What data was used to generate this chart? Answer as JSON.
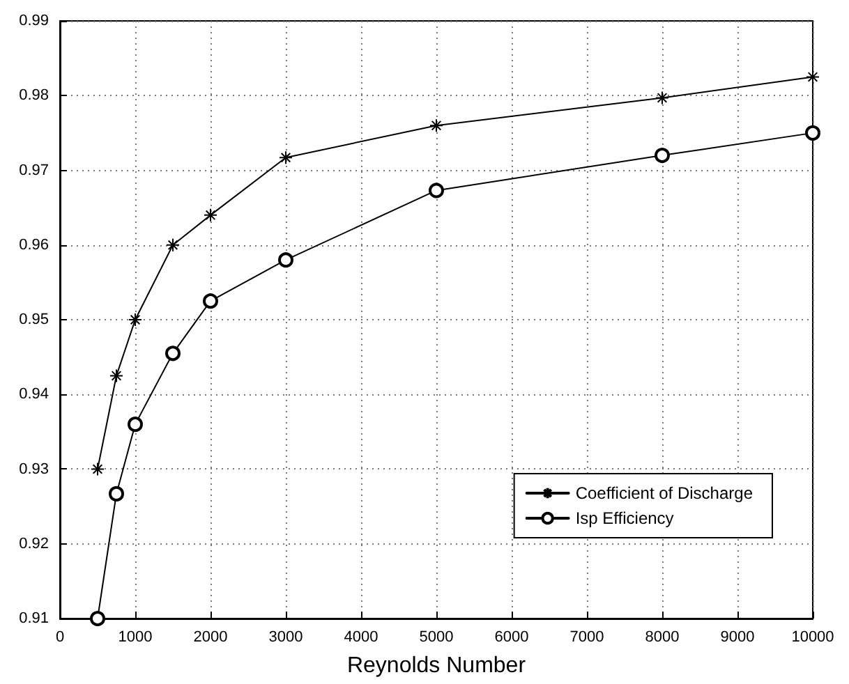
{
  "chart_data": {
    "type": "line",
    "xlabel": "Reynolds Number",
    "x": [
      500,
      750,
      1000,
      1500,
      2000,
      3000,
      5000,
      8000,
      10000
    ],
    "series": [
      {
        "name": "Coefficient of Discharge",
        "color": "#000000",
        "marker": "cross",
        "values": [
          0.93,
          0.9425,
          0.95,
          0.96,
          0.964,
          0.9717,
          0.976,
          0.9797,
          0.9825
        ]
      },
      {
        "name": "Isp Efficiency",
        "color": "#000000",
        "marker": "circle",
        "values": [
          0.91,
          0.9267,
          0.936,
          0.9455,
          0.9525,
          0.958,
          0.9673,
          0.972,
          0.975
        ]
      }
    ],
    "xlim": [
      0,
      10000
    ],
    "xticks": [
      0,
      1000,
      2000,
      3000,
      4000,
      5000,
      6000,
      7000,
      8000,
      9000,
      10000
    ],
    "ylim": [
      0.91,
      0.99
    ],
    "yticks": [
      0.91,
      0.92,
      0.93,
      0.94,
      0.95,
      0.96,
      0.97,
      0.98,
      0.99
    ],
    "grid": true,
    "legend": "bottom right",
    "line_style": "solid"
  }
}
